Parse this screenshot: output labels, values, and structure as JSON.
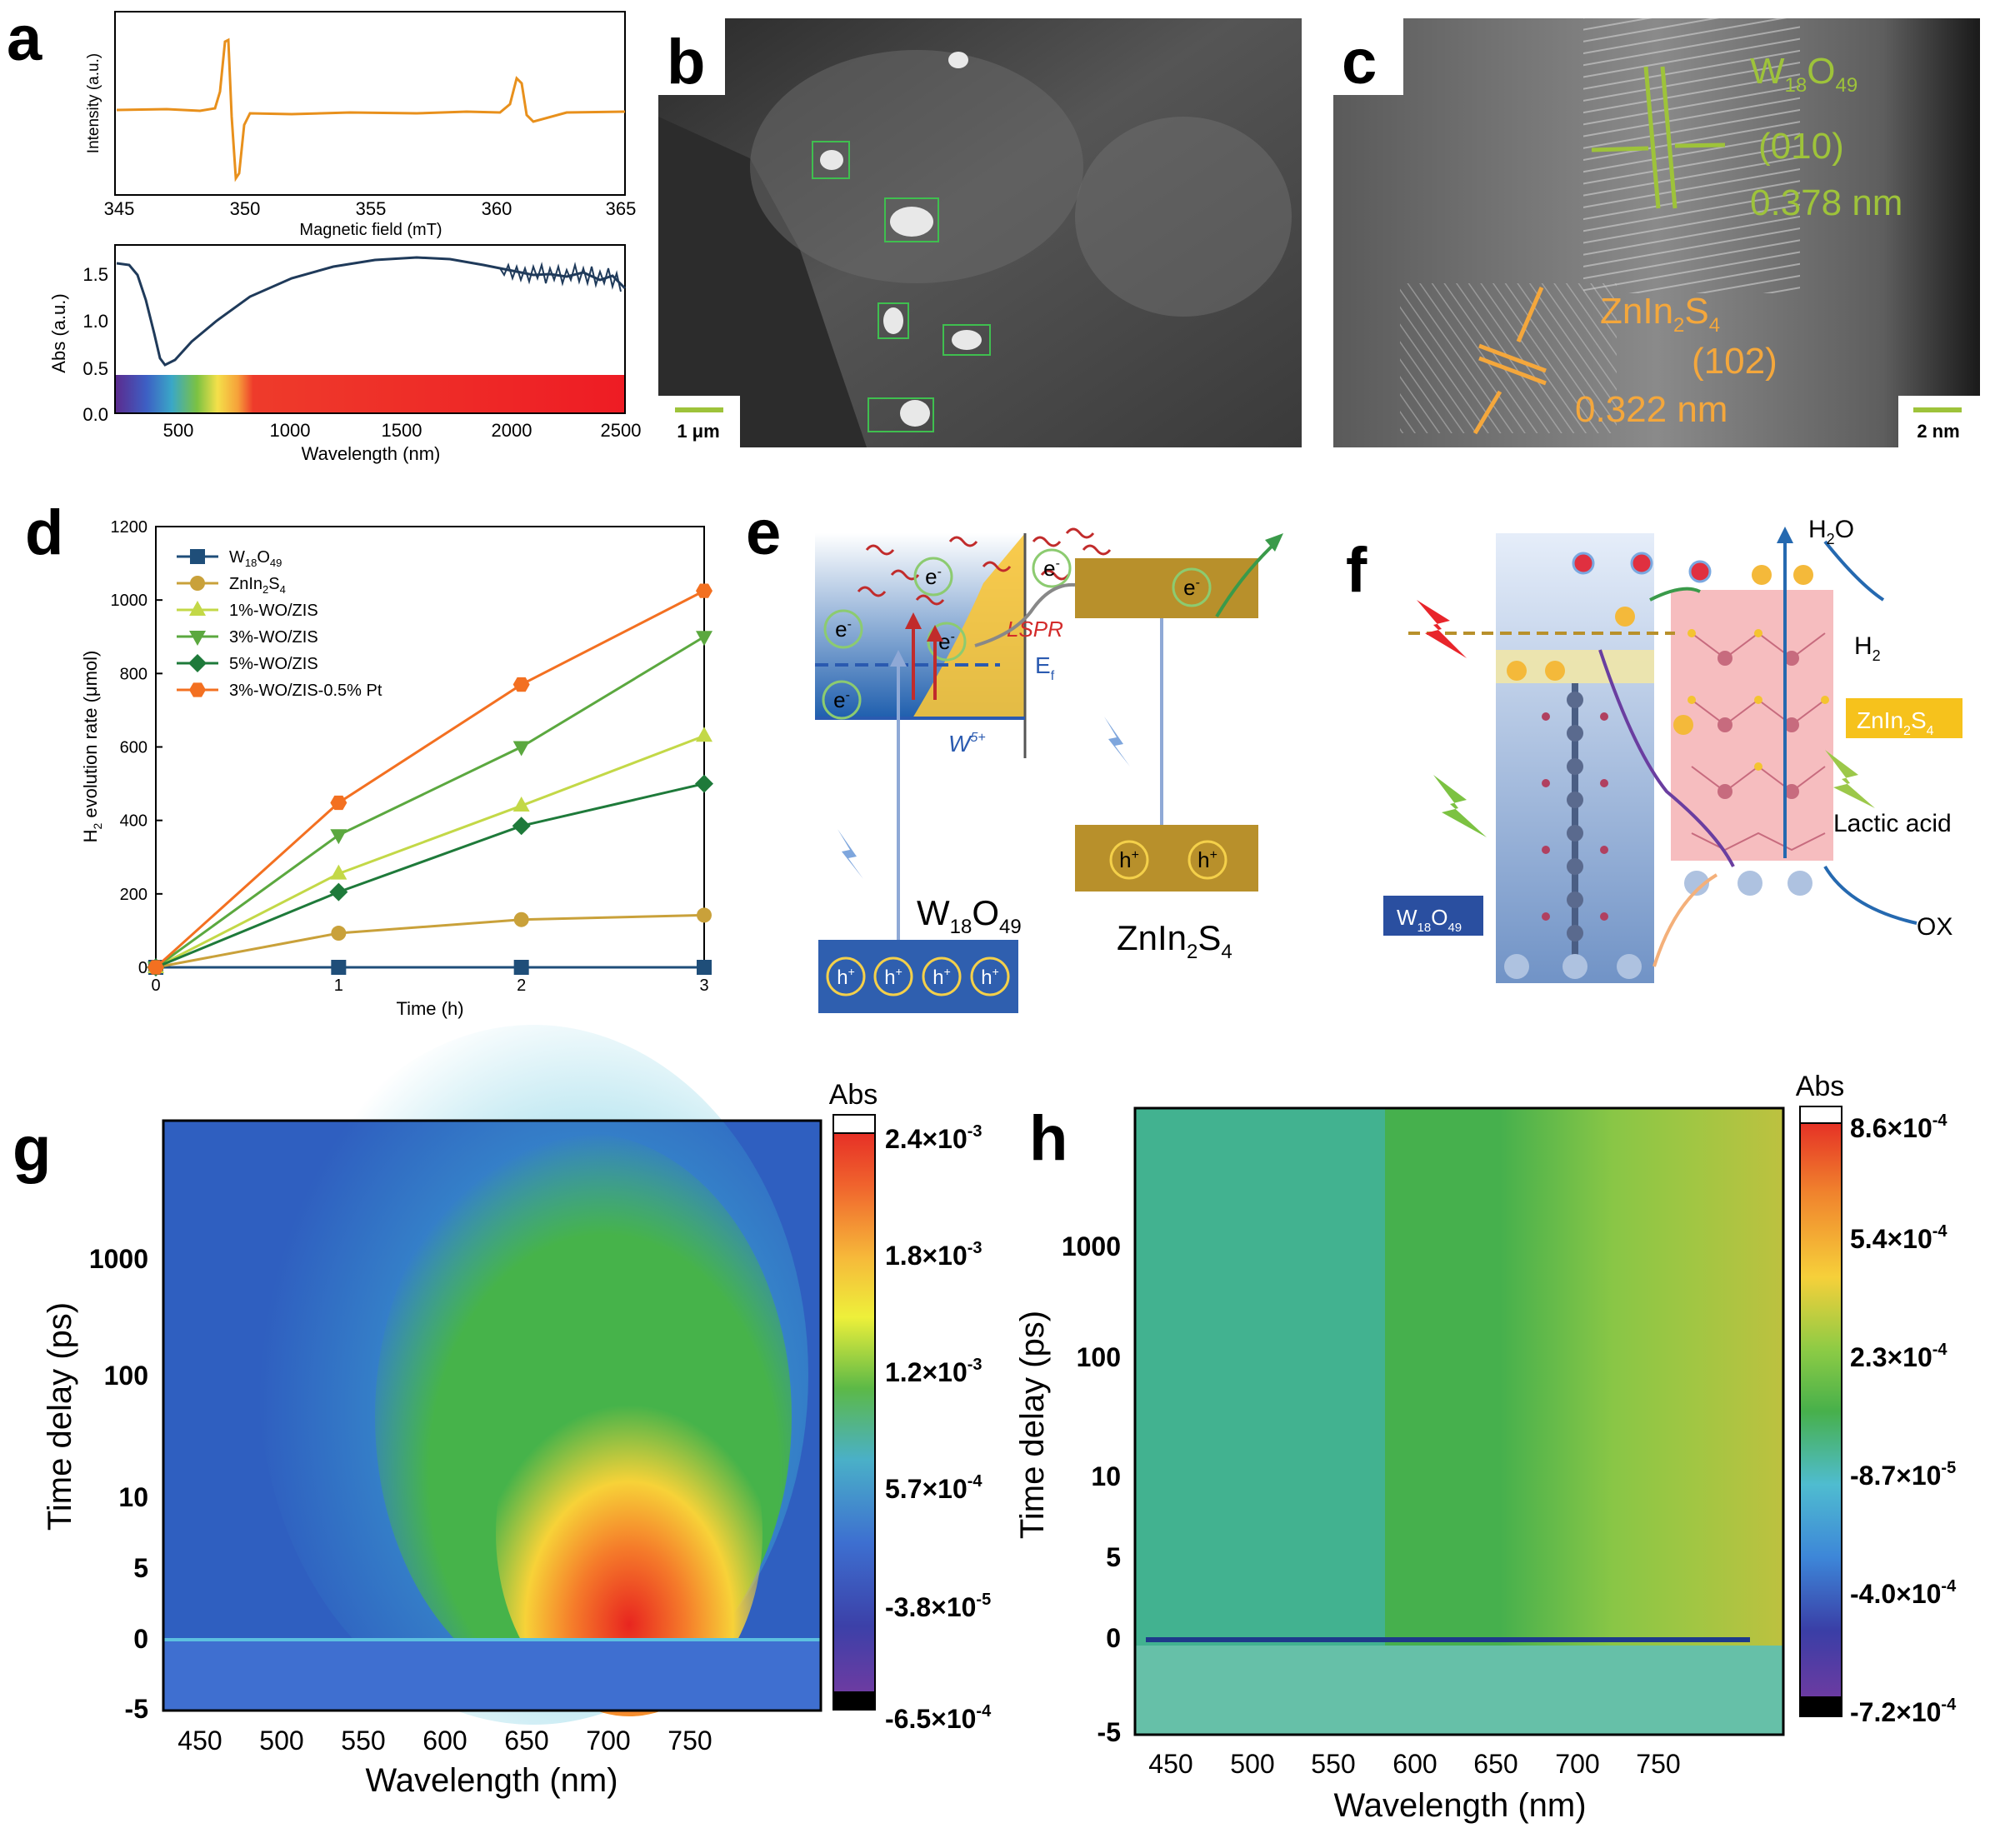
{
  "panels": {
    "a": {
      "letter": "a",
      "epr": {
        "ylabel": "Intensity (a.u.)",
        "xlabel": "Magnetic field (mT)",
        "xticks": [
          "345",
          "350",
          "355",
          "360",
          "365"
        ],
        "line_color": "#e8901c"
      },
      "abs": {
        "ylabel": "Abs (a.u.)",
        "xlabel": "Wavelength (nm)",
        "xticks": [
          "500",
          "1000",
          "1500",
          "2000",
          "2500"
        ],
        "yticks": [
          "0.0",
          "0.5",
          "1.0",
          "1.5"
        ],
        "line_color": "#1f3a5a"
      }
    },
    "b": {
      "letter": "b",
      "scale": "1 μm"
    },
    "c": {
      "letter": "c",
      "scale": "2 nm",
      "w18o49_a": "W",
      "w18o49_sub1": "18",
      "w18o49_b": "O",
      "w18o49_sub2": "49",
      "w_plane": "(010)",
      "w_dspacing": "0.378 nm",
      "zis_a": "ZnIn",
      "zis_sub1": "2",
      "zis_b": "S",
      "zis_sub2": "4",
      "zis_plane": "(102)",
      "zis_dspacing": "0.322 nm"
    },
    "d": {
      "letter": "d",
      "chart_data": {
        "type": "line",
        "xlabel": "Time (h)",
        "ylabel_a": "H",
        "ylabel_sub": "2",
        "ylabel_b": " evolution rate (μmol)",
        "x": [
          0,
          1,
          2,
          3
        ],
        "xticks": [
          "0",
          "1",
          "2",
          "3"
        ],
        "yticks": [
          "0",
          "200",
          "400",
          "600",
          "800",
          "1000",
          "1200"
        ],
        "ylim": [
          0,
          1200
        ],
        "xlim": [
          0,
          3
        ],
        "legend_position": "top-left",
        "series": [
          {
            "name": "W18O49",
            "name_a": "W",
            "name_s1": "18",
            "name_b": "O",
            "name_s2": "49",
            "values": [
              0,
              0,
              0,
              0
            ],
            "color": "#1f4e79",
            "marker": "square"
          },
          {
            "name": "ZnIn2S4",
            "name_a": "ZnIn",
            "name_s1": "2",
            "name_b": "S",
            "name_s2": "4",
            "values": [
              0,
              93,
              130,
              142
            ],
            "color": "#c9a13a",
            "marker": "circle"
          },
          {
            "name": "1%-WO/ZIS",
            "values": [
              0,
              255,
              440,
              630
            ],
            "color": "#c3d847",
            "marker": "triangle-up"
          },
          {
            "name": "3%-WO/ZIS",
            "values": [
              0,
              360,
              600,
              900
            ],
            "color": "#5ba83f",
            "marker": "triangle-down"
          },
          {
            "name": "5%-WO/ZIS",
            "values": [
              0,
              205,
              385,
              500
            ],
            "color": "#1e7a3a",
            "marker": "diamond"
          },
          {
            "name": "3%-WO/ZIS-0.5% Pt",
            "values": [
              0,
              448,
              770,
              1025
            ],
            "color": "#f37021",
            "marker": "hexagon"
          }
        ]
      }
    },
    "e": {
      "letter": "e",
      "electron": "e",
      "minus": "-",
      "hole": "h",
      "plus": "+",
      "lspr": "LSPR",
      "ef_a": "E",
      "ef_sub": "f",
      "w5": "W",
      "w5_sup": "5+",
      "w18o49_a": "W",
      "w18o49_sub1": "18",
      "w18o49_b": "O",
      "w18o49_sub2": "49",
      "zis_a": "ZnIn",
      "zis_sub1": "2",
      "zis_b": "S",
      "zis_sub2": "4"
    },
    "f": {
      "letter": "f",
      "h2o_a": "H",
      "h2o_sub": "2",
      "h2o_b": "O",
      "h2_a": "H",
      "h2_sub": "2",
      "zis_a": "ZnIn",
      "zis_sub1": "2",
      "zis_b": "S",
      "zis_sub2": "4",
      "lactic": "Lactic acid",
      "ox": "OX",
      "w18o49_a": "W",
      "w18o49_sub1": "18",
      "w18o49_b": "O",
      "w18o49_sub2": "49"
    },
    "g": {
      "letter": "g",
      "title": "Abs",
      "ylabel": "Time delay (ps)",
      "xlabel": "Wavelength (nm)",
      "xticks": [
        "450",
        "500",
        "550",
        "600",
        "650",
        "700",
        "750"
      ],
      "yticks": [
        "-5",
        "0",
        "5",
        "10",
        "100",
        "1000"
      ],
      "colorbar": {
        "t0": "2.4×10",
        "e0": "-3",
        "t1": "1.8×10",
        "e1": "-3",
        "t2": "1.2×10",
        "e2": "-3",
        "t3": "5.7×10",
        "e3": "-4",
        "t4": "-3.8×10",
        "e4": "-5",
        "t5": "-6.5×10",
        "e5": "-4"
      }
    },
    "h": {
      "letter": "h",
      "title": "Abs",
      "ylabel": "Time delay (ps)",
      "xlabel": "Wavelength (nm)",
      "xticks": [
        "450",
        "500",
        "550",
        "600",
        "650",
        "700",
        "750"
      ],
      "yticks": [
        "-5",
        "0",
        "5",
        "10",
        "100",
        "1000"
      ],
      "colorbar": {
        "t0": "8.6×10",
        "e0": "-4",
        "t1": "5.4×10",
        "e1": "-4",
        "t2": "2.3×10",
        "e2": "-4",
        "t3": "-8.7×10",
        "e3": "-5",
        "t4": "-4.0×10",
        "e4": "-4",
        "t5": "-7.2×10",
        "e5": "-4"
      }
    }
  }
}
